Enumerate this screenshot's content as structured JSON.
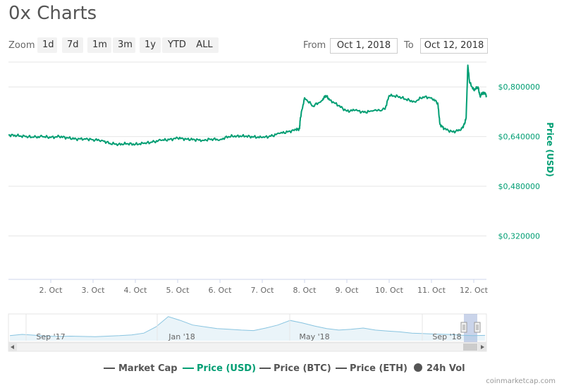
{
  "header": {
    "title": "0x Charts",
    "zoom_label": "Zoom",
    "zoom_buttons": [
      "1d",
      "7d",
      "1m",
      "3m",
      "1y",
      "YTD",
      "ALL"
    ],
    "from_label": "From",
    "from_date": "Oct 1, 2018",
    "to_label": "To",
    "to_date": "Oct 12, 2018"
  },
  "colors": {
    "price_usd": "#009e73",
    "navigator_line": "#88c4e0",
    "grid": "#e6e6e6",
    "legend_inactive": "#555555"
  },
  "chart_data": {
    "type": "line",
    "ylabel": "Price (USD)",
    "yticks": [
      "$0,320000",
      "$0,480000",
      "$0,640000",
      "$0,800000"
    ],
    "ylim": [
      0.18,
      0.88
    ],
    "xticks": [
      "2. Oct",
      "3. Oct",
      "4. Oct",
      "5. Oct",
      "6. Oct",
      "7. Oct",
      "8. Oct",
      "9. Oct",
      "10. Oct",
      "11. Oct",
      "12. Oct"
    ],
    "xlim": [
      1.0,
      12.3
    ],
    "grid": true,
    "series": [
      {
        "name": "Price (USD)",
        "x": [
          1.0,
          1.2,
          1.4,
          1.6,
          1.8,
          2.0,
          2.2,
          2.4,
          2.6,
          2.8,
          3.0,
          3.2,
          3.4,
          3.6,
          3.8,
          4.0,
          4.2,
          4.4,
          4.6,
          4.8,
          5.0,
          5.2,
          5.4,
          5.6,
          5.8,
          6.0,
          6.2,
          6.4,
          6.6,
          6.8,
          7.0,
          7.2,
          7.4,
          7.6,
          7.8,
          7.88,
          7.9,
          8.0,
          8.2,
          8.4,
          8.5,
          8.6,
          8.8,
          9.0,
          9.2,
          9.4,
          9.6,
          9.9,
          10.0,
          10.2,
          10.4,
          10.6,
          10.8,
          11.0,
          11.15,
          11.2,
          11.3,
          11.5,
          11.7,
          11.78,
          11.82,
          11.86,
          11.9,
          12.0,
          12.1,
          12.15,
          12.2,
          12.25,
          12.3
        ],
        "values": [
          0.645,
          0.643,
          0.64,
          0.638,
          0.64,
          0.637,
          0.64,
          0.636,
          0.632,
          0.633,
          0.63,
          0.628,
          0.618,
          0.615,
          0.617,
          0.615,
          0.618,
          0.622,
          0.628,
          0.63,
          0.635,
          0.632,
          0.63,
          0.628,
          0.632,
          0.63,
          0.64,
          0.642,
          0.641,
          0.639,
          0.637,
          0.641,
          0.65,
          0.655,
          0.662,
          0.665,
          0.7,
          0.765,
          0.738,
          0.755,
          0.772,
          0.758,
          0.74,
          0.722,
          0.725,
          0.718,
          0.722,
          0.728,
          0.772,
          0.77,
          0.76,
          0.752,
          0.768,
          0.765,
          0.748,
          0.68,
          0.665,
          0.655,
          0.662,
          0.68,
          0.7,
          0.87,
          0.815,
          0.79,
          0.8,
          0.77,
          0.78,
          0.782,
          0.772
        ]
      }
    ],
    "navigator": {
      "xticks": [
        "Sep '17",
        "Jan '18",
        "May '18",
        "Sep '18"
      ],
      "values": [
        0.2,
        0.25,
        0.22,
        0.18,
        0.17,
        0.18,
        0.17,
        0.16,
        0.18,
        0.2,
        0.23,
        0.3,
        0.55,
        0.95,
        0.8,
        0.62,
        0.55,
        0.48,
        0.45,
        0.42,
        0.4,
        0.5,
        0.62,
        0.8,
        0.7,
        0.58,
        0.48,
        0.42,
        0.45,
        0.5,
        0.42,
        0.38,
        0.35,
        0.3,
        0.28,
        0.26,
        0.25,
        0.22,
        0.2,
        0.21
      ]
    }
  },
  "legend": {
    "items": [
      {
        "label": "Market Cap",
        "active": false
      },
      {
        "label": "Price (USD)",
        "active": true
      },
      {
        "label": "Price (BTC)",
        "active": false
      },
      {
        "label": "Price (ETH)",
        "active": false
      },
      {
        "label": "24h Vol",
        "active": false
      }
    ]
  },
  "footer": {
    "credit": "coinmarketcap.com"
  }
}
